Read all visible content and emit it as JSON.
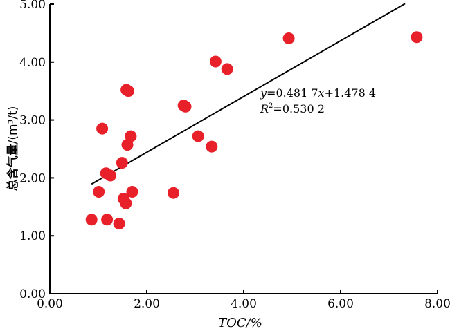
{
  "chart_data": {
    "type": "scatter",
    "xlabel": "TOC/%",
    "ylabel_main": "总含气量",
    "ylabel_unit": "/(m³/t)",
    "xlim": [
      0,
      8
    ],
    "ylim": [
      0,
      5
    ],
    "x_ticks": [
      "0.00",
      "2.00",
      "4.00",
      "6.00",
      "8.00"
    ],
    "y_ticks": [
      "0.00",
      "1.00",
      "2.00",
      "3.00",
      "4.00",
      "5.00"
    ],
    "x_tick_values": [
      0,
      2,
      4,
      6,
      8
    ],
    "y_tick_values": [
      0,
      1,
      2,
      3,
      4,
      5
    ],
    "point_color": "#e8202a",
    "line_color": "#000000",
    "points": [
      {
        "x": 0.86,
        "y": 1.28
      },
      {
        "x": 1.01,
        "y": 1.76
      },
      {
        "x": 1.08,
        "y": 2.85
      },
      {
        "x": 1.16,
        "y": 2.08
      },
      {
        "x": 1.18,
        "y": 1.28
      },
      {
        "x": 1.25,
        "y": 2.04
      },
      {
        "x": 1.43,
        "y": 1.21
      },
      {
        "x": 1.49,
        "y": 2.26
      },
      {
        "x": 1.52,
        "y": 1.64
      },
      {
        "x": 1.57,
        "y": 1.56
      },
      {
        "x": 1.58,
        "y": 3.52
      },
      {
        "x": 1.6,
        "y": 2.57
      },
      {
        "x": 1.62,
        "y": 3.5
      },
      {
        "x": 1.67,
        "y": 2.72
      },
      {
        "x": 1.7,
        "y": 1.76
      },
      {
        "x": 2.55,
        "y": 1.74
      },
      {
        "x": 2.76,
        "y": 3.25
      },
      {
        "x": 2.8,
        "y": 3.23
      },
      {
        "x": 3.06,
        "y": 2.72
      },
      {
        "x": 3.34,
        "y": 2.54
      },
      {
        "x": 3.42,
        "y": 4.01
      },
      {
        "x": 3.66,
        "y": 3.88
      },
      {
        "x": 4.93,
        "y": 4.41
      },
      {
        "x": 7.57,
        "y": 4.43
      }
    ],
    "fit_line": {
      "x_start": 0.86,
      "x_end": 7.33,
      "slope": 0.4817,
      "intercept": 1.4784
    },
    "equation": {
      "y_var": "y",
      "eq_part1": "=0.481 7",
      "x_var": "x",
      "eq_part2": "+1.478 4",
      "r_var": "R",
      "r_sup": "2",
      "r_value": "=0.530 2"
    }
  }
}
